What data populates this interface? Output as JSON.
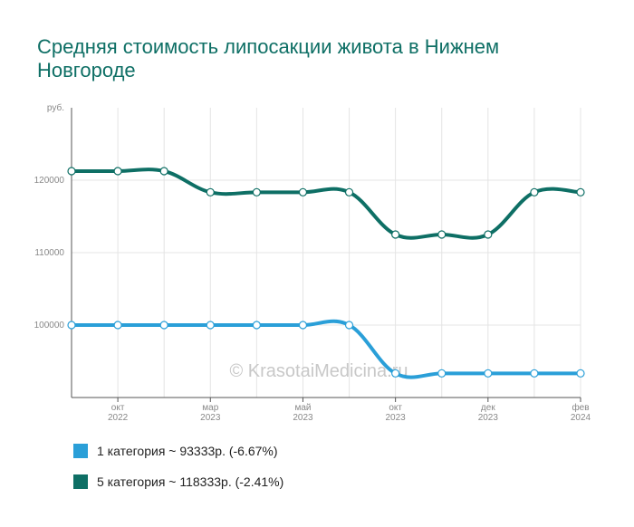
{
  "title": "Средняя стоимость липосакции живота в Нижнем Новгороде",
  "watermark": "© KrasotaiMedicina.ru",
  "legend": [
    {
      "color": "#2a9fd8",
      "text": "1 категория ~ 93333р. (-6.67%)"
    },
    {
      "color": "#0e6f65",
      "text": "5 категория ~ 118333р. (-2.41%)"
    }
  ],
  "chart_data": {
    "type": "line",
    "title": "Средняя стоимость липосакции живота в Нижнем Новгороде",
    "ylabel": "руб.",
    "ylim": [
      90000,
      130000
    ],
    "yticks": [
      100000,
      110000,
      120000
    ],
    "x_count": 12,
    "xticks": [
      {
        "index": 1,
        "label": [
          "окт",
          "2022"
        ]
      },
      {
        "index": 3,
        "label": [
          "мар",
          "2023"
        ]
      },
      {
        "index": 5,
        "label": [
          "май",
          "2023"
        ]
      },
      {
        "index": 7,
        "label": [
          "окт",
          "2023"
        ]
      },
      {
        "index": 9,
        "label": [
          "дек",
          "2023"
        ]
      },
      {
        "index": 11,
        "label": [
          "фев",
          "2024"
        ]
      }
    ],
    "grid": true,
    "legend_position": "bottom-left",
    "series": [
      {
        "name": "1 категория",
        "color": "#2a9fd8",
        "values": [
          100000,
          100000,
          100000,
          100000,
          100000,
          100000,
          100000,
          93333,
          93333,
          93333,
          93333,
          93333
        ]
      },
      {
        "name": "5 категория",
        "color": "#0e6f65",
        "values": [
          121250,
          121250,
          121250,
          118333,
          118333,
          118333,
          118333,
          112500,
          112500,
          112500,
          118333,
          118333
        ]
      }
    ]
  }
}
